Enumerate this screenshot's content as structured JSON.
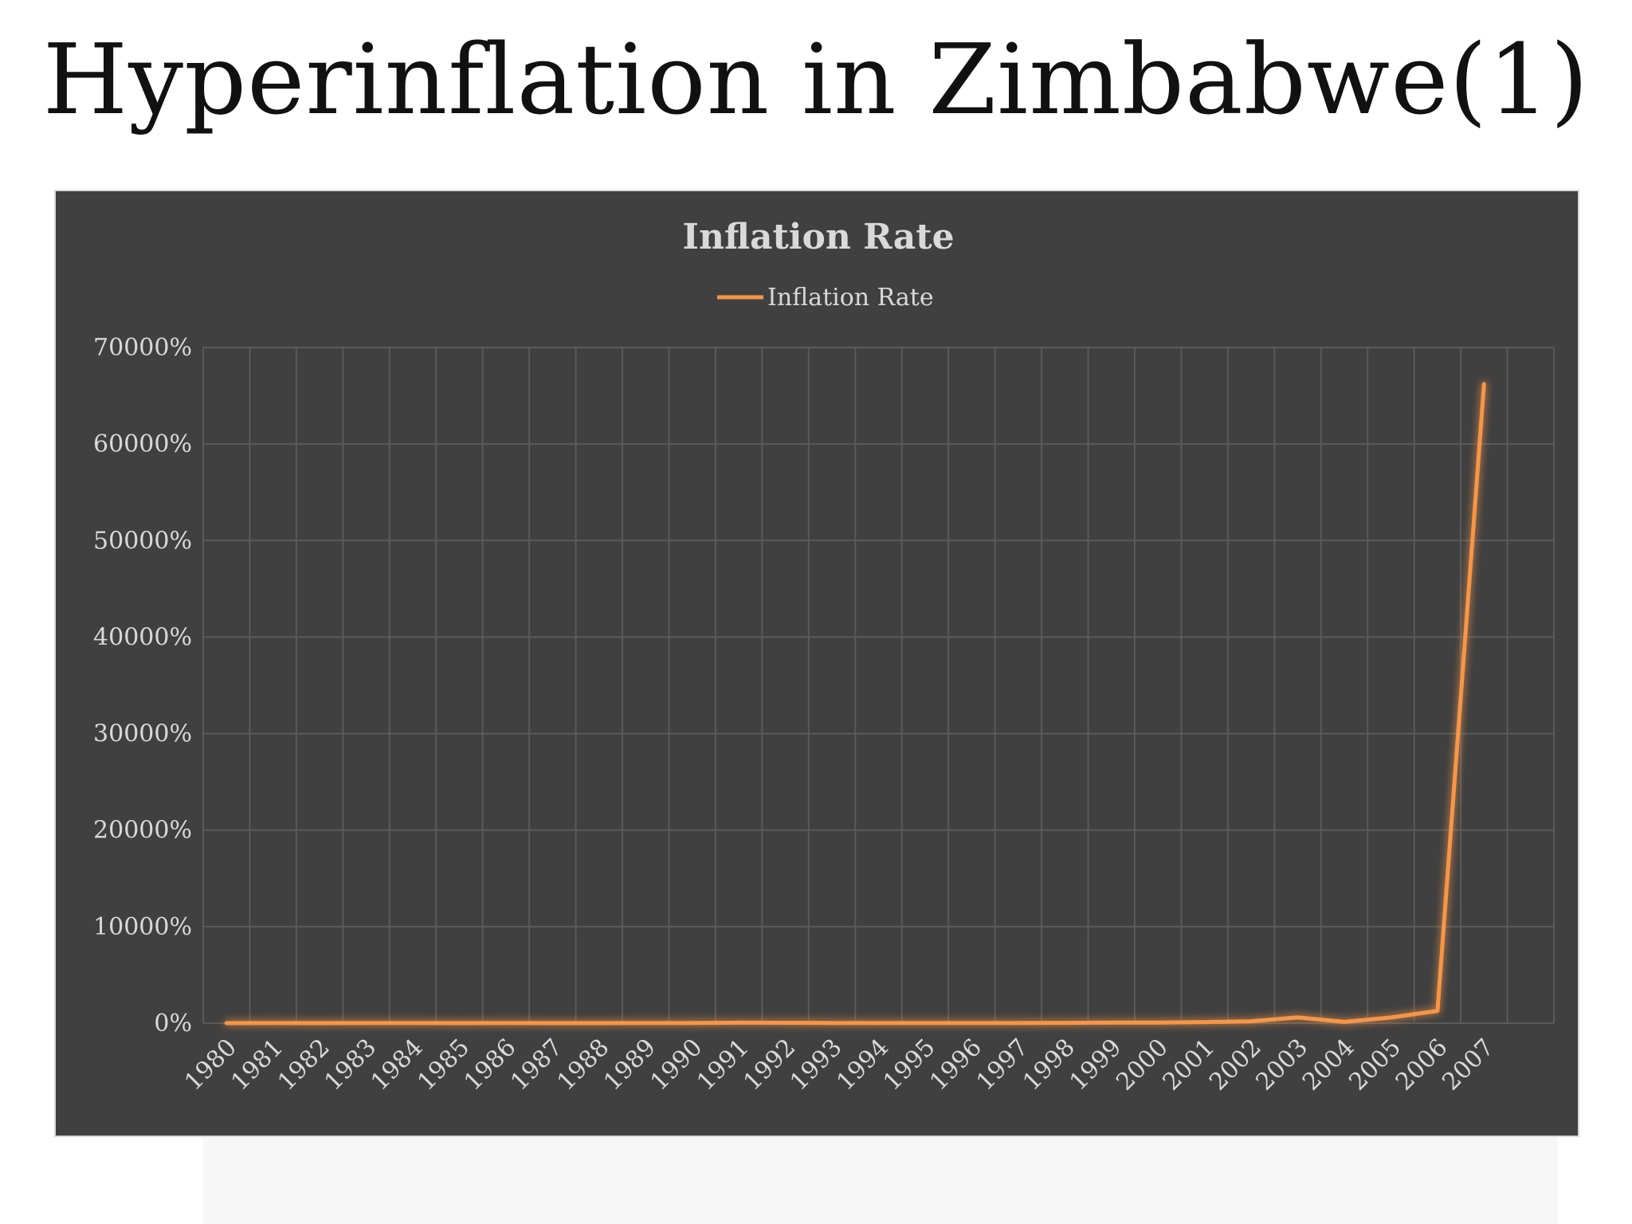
{
  "slide": {
    "title": "Hyperinflation in Zimbabwe(1)"
  },
  "chart_data": {
    "type": "line",
    "title": "Inflation Rate",
    "legend": {
      "position": "top",
      "entries": [
        "Inflation Rate"
      ]
    },
    "categories": [
      "1980",
      "1981",
      "1982",
      "1983",
      "1984",
      "1985",
      "1986",
      "1987",
      "1988",
      "1989",
      "1990",
      "1991",
      "1992",
      "1993",
      "1994",
      "1995",
      "1996",
      "1997",
      "1998",
      "1999",
      "2000",
      "2001",
      "2002",
      "2003",
      "2004",
      "2005",
      "2006",
      "2007"
    ],
    "series": [
      {
        "name": "Inflation Rate",
        "color": "#f79646",
        "values": [
          7,
          13,
          11,
          23,
          20,
          8,
          15,
          12,
          7,
          13,
          17,
          48,
          42,
          28,
          22,
          23,
          21,
          19,
          32,
          58,
          56,
          112,
          199,
          599,
          133,
          586,
          1281,
          66212
        ]
      }
    ],
    "yaxis": {
      "ticks": [
        0,
        10000,
        20000,
        30000,
        40000,
        50000,
        60000,
        70000
      ],
      "tick_labels": [
        "0%",
        "10000%",
        "20000%",
        "30000%",
        "40000%",
        "50000%",
        "60000%",
        "70000%"
      ],
      "ylim": [
        0,
        70000
      ],
      "unit": "%"
    },
    "xlabel": "",
    "ylabel": "",
    "grid": true,
    "colors": {
      "plot_background": "#404040",
      "gridline": "#5a5a5a",
      "text": "#d9d9d9",
      "line": "#f79646"
    }
  }
}
